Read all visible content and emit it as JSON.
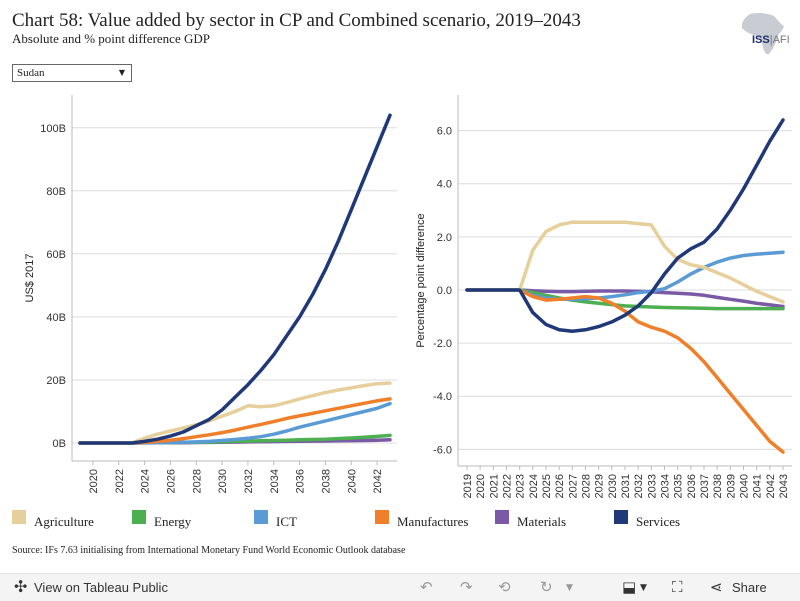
{
  "header": {
    "title": "Chart 58: Value added by sector in CP and Combined scenario, 2019–2043",
    "subtitle": "Absolute and % point difference GDP"
  },
  "logo": {
    "brand": "ISS",
    "suffix": "AFI"
  },
  "filter": {
    "selected": "Sudan"
  },
  "source": "Source: IFs 7.63 initialising from International Monetary Fund World Economic Outlook database",
  "footer": {
    "view_label": "View on Tableau Public",
    "share_label": "Share"
  },
  "legend": [
    {
      "name": "Agriculture",
      "color": "#e6cf9a"
    },
    {
      "name": "Energy",
      "color": "#4caf50"
    },
    {
      "name": "ICT",
      "color": "#5b9bd5"
    },
    {
      "name": "Manufactures",
      "color": "#f07f2a"
    },
    {
      "name": "Materials",
      "color": "#7a5aa6"
    },
    {
      "name": "Services",
      "color": "#1f3878"
    }
  ],
  "chart_data": [
    {
      "type": "line",
      "ylabel": "US$ 2017",
      "xlabel": "",
      "ylim": [
        0,
        105
      ],
      "y_ticks": [
        0,
        20,
        40,
        60,
        80,
        100
      ],
      "y_tick_labels": [
        "0B",
        "20B",
        "40B",
        "60B",
        "80B",
        "100B"
      ],
      "x": [
        2019,
        2020,
        2021,
        2022,
        2023,
        2024,
        2025,
        2026,
        2027,
        2028,
        2029,
        2030,
        2031,
        2032,
        2033,
        2034,
        2035,
        2036,
        2037,
        2038,
        2039,
        2040,
        2041,
        2042,
        2043
      ],
      "x_tick_labels": [
        "2020",
        "2022",
        "2024",
        "2026",
        "2028",
        "2030",
        "2032",
        "2034",
        "2036",
        "2038",
        "2040",
        "2042"
      ],
      "x_ticks": [
        2020,
        2022,
        2024,
        2026,
        2028,
        2030,
        2032,
        2034,
        2036,
        2038,
        2040,
        2042
      ],
      "grid": "horizontal",
      "series": [
        {
          "name": "Agriculture",
          "values": [
            0,
            0,
            0,
            0,
            0,
            1.5,
            2.8,
            3.8,
            4.8,
            5.8,
            7,
            8.5,
            10,
            11.8,
            11.5,
            11.8,
            12.8,
            14,
            15,
            16,
            16.8,
            17.5,
            18.2,
            18.8,
            19
          ]
        },
        {
          "name": "Energy",
          "values": [
            0,
            0,
            0,
            0,
            0,
            0.05,
            0.1,
            0.15,
            0.2,
            0.25,
            0.3,
            0.4,
            0.5,
            0.6,
            0.7,
            0.8,
            0.9,
            1.0,
            1.1,
            1.2,
            1.4,
            1.6,
            1.8,
            2.1,
            2.4
          ]
        },
        {
          "name": "ICT",
          "values": [
            0,
            0,
            0,
            0,
            0,
            0.05,
            0.1,
            0.15,
            0.25,
            0.35,
            0.5,
            0.8,
            1.1,
            1.5,
            2.0,
            2.8,
            3.8,
            5.0,
            6.0,
            7.0,
            8.0,
            9.0,
            10.0,
            11.0,
            12.5
          ]
        },
        {
          "name": "Manufactures",
          "values": [
            0,
            0,
            0,
            0,
            0,
            0.2,
            0.5,
            0.9,
            1.4,
            2.0,
            2.6,
            3.3,
            4.1,
            5.0,
            5.9,
            6.8,
            7.8,
            8.6,
            9.4,
            10.2,
            11,
            11.8,
            12.6,
            13.4,
            14
          ]
        },
        {
          "name": "Materials",
          "values": [
            0,
            0,
            0,
            0,
            0,
            0.02,
            0.05,
            0.08,
            0.1,
            0.15,
            0.2,
            0.25,
            0.3,
            0.35,
            0.4,
            0.45,
            0.5,
            0.55,
            0.6,
            0.65,
            0.7,
            0.75,
            0.8,
            0.9,
            1.0
          ]
        },
        {
          "name": "Services",
          "values": [
            0,
            0,
            0,
            0,
            0,
            0.5,
            1.2,
            2.2,
            3.5,
            5.5,
            7.5,
            10.5,
            14.5,
            18.5,
            23,
            28,
            34,
            40,
            47,
            55,
            64,
            74,
            84,
            94,
            104
          ]
        }
      ]
    },
    {
      "type": "line",
      "ylabel": "Percentage point difference",
      "xlabel": "",
      "ylim": [
        -6.4,
        6.7
      ],
      "y_ticks": [
        -6,
        -4,
        -2,
        0,
        2,
        4,
        6
      ],
      "y_tick_labels": [
        "-6.0",
        "-4.0",
        "-2.0",
        "0.0",
        "2.0",
        "4.0",
        "6.0"
      ],
      "x": [
        2019,
        2020,
        2021,
        2022,
        2023,
        2024,
        2025,
        2026,
        2027,
        2028,
        2029,
        2030,
        2031,
        2032,
        2033,
        2034,
        2035,
        2036,
        2037,
        2038,
        2039,
        2040,
        2041,
        2042,
        2043
      ],
      "x_tick_labels": [
        "2019",
        "2020",
        "2021",
        "2022",
        "2023",
        "2024",
        "2025",
        "2026",
        "2027",
        "2028",
        "2029",
        "2030",
        "2031",
        "2032",
        "2033",
        "2034",
        "2035",
        "2036",
        "2037",
        "2038",
        "2039",
        "2040",
        "2041",
        "2042",
        "2043"
      ],
      "x_ticks": [
        2019,
        2020,
        2021,
        2022,
        2023,
        2024,
        2025,
        2026,
        2027,
        2028,
        2029,
        2030,
        2031,
        2032,
        2033,
        2034,
        2035,
        2036,
        2037,
        2038,
        2039,
        2040,
        2041,
        2042,
        2043
      ],
      "grid": "horizontal",
      "series": [
        {
          "name": "Agriculture",
          "values": [
            0,
            0,
            0,
            0,
            0,
            1.5,
            2.2,
            2.45,
            2.55,
            2.55,
            2.55,
            2.55,
            2.55,
            2.5,
            2.45,
            1.65,
            1.15,
            0.95,
            0.85,
            0.65,
            0.45,
            0.2,
            -0.05,
            -0.25,
            -0.45
          ]
        },
        {
          "name": "Energy",
          "values": [
            0,
            0,
            0,
            0,
            0,
            -0.1,
            -0.2,
            -0.3,
            -0.38,
            -0.45,
            -0.5,
            -0.55,
            -0.6,
            -0.62,
            -0.64,
            -0.66,
            -0.67,
            -0.68,
            -0.69,
            -0.7,
            -0.7,
            -0.7,
            -0.7,
            -0.7,
            -0.7
          ]
        },
        {
          "name": "ICT",
          "values": [
            0,
            0,
            0,
            0,
            0,
            -0.2,
            -0.3,
            -0.35,
            -0.35,
            -0.33,
            -0.3,
            -0.25,
            -0.18,
            -0.1,
            -0.05,
            0.05,
            0.3,
            0.6,
            0.85,
            1.05,
            1.2,
            1.3,
            1.35,
            1.38,
            1.42
          ]
        },
        {
          "name": "Manufactures",
          "values": [
            0,
            0,
            0,
            0,
            0,
            -0.25,
            -0.38,
            -0.35,
            -0.3,
            -0.25,
            -0.3,
            -0.5,
            -0.8,
            -1.2,
            -1.4,
            -1.55,
            -1.8,
            -2.2,
            -2.7,
            -3.3,
            -3.9,
            -4.5,
            -5.1,
            -5.7,
            -6.1
          ]
        },
        {
          "name": "Materials",
          "values": [
            0,
            0,
            0,
            0,
            0,
            -0.03,
            -0.05,
            -0.06,
            -0.06,
            -0.05,
            -0.04,
            -0.04,
            -0.04,
            -0.05,
            -0.07,
            -0.1,
            -0.12,
            -0.15,
            -0.2,
            -0.28,
            -0.35,
            -0.42,
            -0.5,
            -0.56,
            -0.62
          ]
        },
        {
          "name": "Services",
          "values": [
            0,
            0,
            0,
            0,
            0,
            -0.85,
            -1.3,
            -1.5,
            -1.55,
            -1.5,
            -1.38,
            -1.2,
            -0.95,
            -0.6,
            -0.1,
            0.6,
            1.2,
            1.55,
            1.8,
            2.3,
            3.0,
            3.8,
            4.7,
            5.6,
            6.4
          ]
        }
      ]
    }
  ]
}
